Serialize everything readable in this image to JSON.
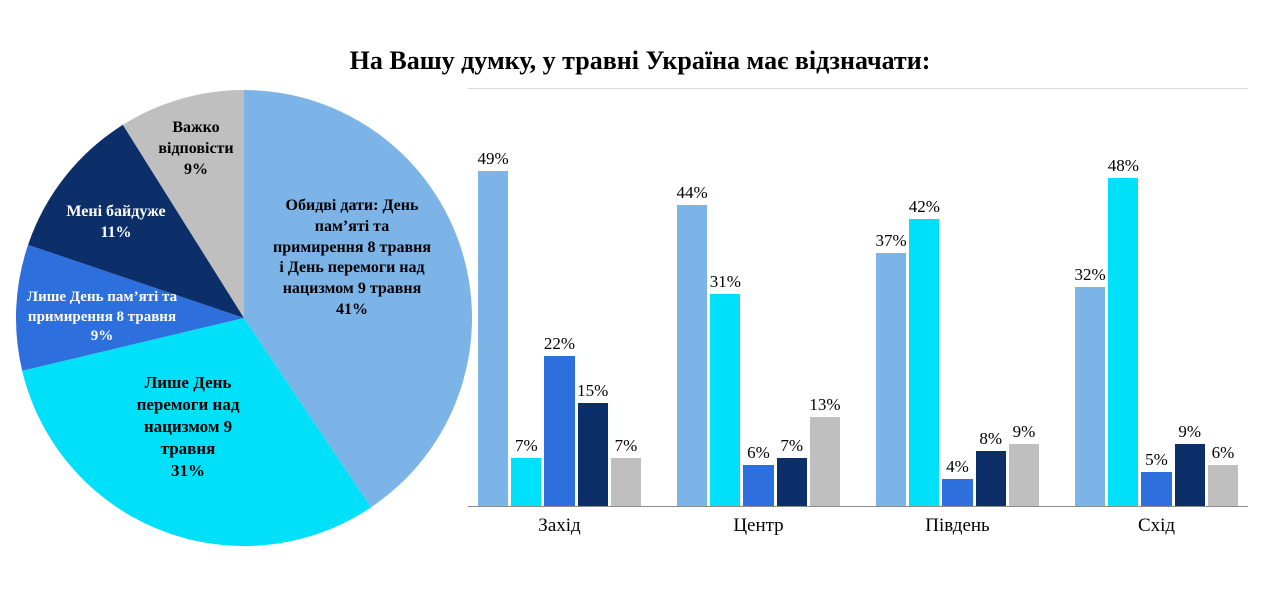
{
  "title": "На Вашу думку, у травні Україна має відзначати:",
  "colors": {
    "light_blue": "#7CB4E8",
    "cyan": "#00E0F8",
    "blue": "#2E6FDE",
    "navy": "#0C2E69",
    "gray": "#BFBFBF"
  },
  "chart_data": [
    {
      "type": "pie",
      "title": "На Вашу думку, у травні Україна має відзначати:",
      "direction": "clockwise",
      "start_angle_deg": 0,
      "slices": [
        {
          "label": "Обидві дати: День пам’яті та примирення 8 травня і День перемоги над нацизмом 9 травня",
          "value": 41,
          "value_label": "41%",
          "color": "#7CB4E8",
          "text_color": "#000000"
        },
        {
          "label": "Лише День перемоги над нацизмом 9 травня",
          "value": 31,
          "value_label": "31%",
          "color": "#00E0F8",
          "text_color": "#000000"
        },
        {
          "label": "Лише День пам’яті та примирення 8 травня",
          "value": 9,
          "value_label": "9%",
          "color": "#2E6FDE",
          "text_color": "#FFFFFF"
        },
        {
          "label": "Мені байдуже",
          "value": 11,
          "value_label": "11%",
          "color": "#0C2E69",
          "text_color": "#FFFFFF"
        },
        {
          "label": "Важко відповісти",
          "value": 9,
          "value_label": "9%",
          "color": "#BFBFBF",
          "text_color": "#000000"
        }
      ]
    },
    {
      "type": "bar",
      "categories": [
        "Захід",
        "Центр",
        "Південь",
        "Схід"
      ],
      "series": [
        {
          "name": "Обидві дати: День пам’яті та примирення 8 травня і День перемоги над нацизмом 9 травня",
          "color": "#7CB4E8",
          "values": [
            49,
            44,
            37,
            32
          ]
        },
        {
          "name": "Лише День перемоги над нацизмом 9 травня",
          "color": "#00E0F8",
          "values": [
            7,
            31,
            42,
            48
          ]
        },
        {
          "name": "Лише День пам’яті та примирення 8 травня",
          "color": "#2E6FDE",
          "values": [
            22,
            6,
            4,
            5
          ]
        },
        {
          "name": "Мені байдуже",
          "color": "#0C2E69",
          "values": [
            15,
            7,
            8,
            9
          ]
        },
        {
          "name": "Важко відповісти",
          "color": "#BFBFBF",
          "values": [
            7,
            13,
            9,
            6
          ]
        }
      ],
      "value_suffix": "%",
      "ylim": [
        0,
        61
      ],
      "grid": false,
      "legend": "none"
    }
  ]
}
